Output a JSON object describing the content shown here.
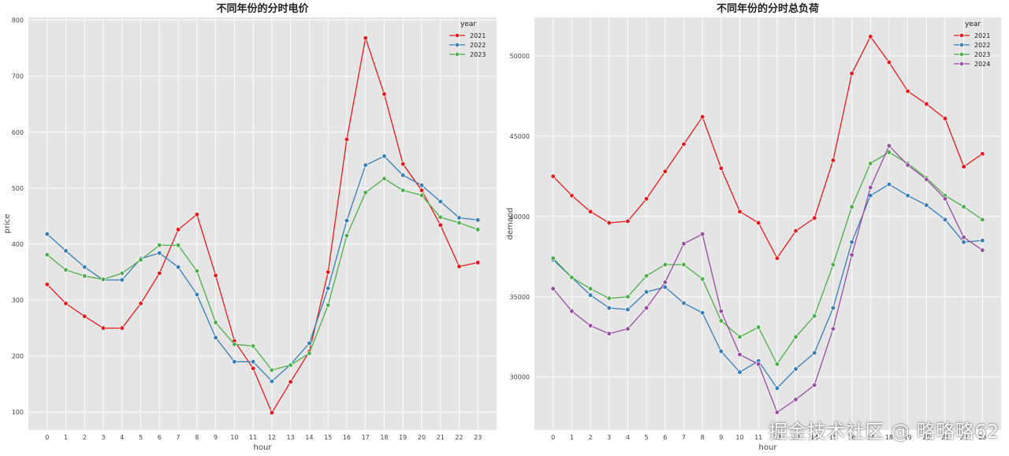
{
  "watermark": "掘金技术社区 @ 略略略62",
  "chart_data": [
    {
      "type": "line",
      "title": "不同年份的分时电价",
      "xlabel": "hour",
      "ylabel": "price",
      "x": [
        0,
        1,
        2,
        3,
        4,
        5,
        6,
        7,
        8,
        9,
        10,
        11,
        12,
        13,
        14,
        15,
        16,
        17,
        18,
        19,
        20,
        21,
        22,
        23
      ],
      "xticks": [
        "0",
        "1",
        "2",
        "3",
        "4",
        "5",
        "6",
        "7",
        "8",
        "9",
        "10",
        "11",
        "12",
        "13",
        "14",
        "15",
        "16",
        "17",
        "18",
        "19",
        "20",
        "21",
        "22",
        "23"
      ],
      "xlim": [
        -1,
        24
      ],
      "ylim": [
        68,
        805
      ],
      "yticks": [
        100,
        200,
        300,
        400,
        500,
        600,
        700,
        800
      ],
      "grid": true,
      "legend_title": "year",
      "legend_position": "top-right",
      "series": [
        {
          "name": "2021",
          "color": "#e41a1c",
          "values": [
            328,
            294,
            271,
            250,
            250,
            294,
            348,
            426,
            453,
            344,
            227,
            178,
            99,
            154,
            208,
            350,
            587,
            768,
            668,
            543,
            496,
            434,
            360,
            367
          ]
        },
        {
          "name": "2022",
          "color": "#377eb8",
          "values": [
            418,
            388,
            359,
            336,
            336,
            374,
            384,
            359,
            310,
            233,
            190,
            190,
            155,
            185,
            223,
            321,
            442,
            541,
            557,
            523,
            505,
            476,
            447,
            443
          ]
        },
        {
          "name": "2023",
          "color": "#4daf4a",
          "values": [
            381,
            354,
            343,
            337,
            348,
            372,
            398,
            398,
            352,
            260,
            221,
            218,
            175,
            184,
            205,
            291,
            415,
            492,
            517,
            496,
            487,
            448,
            438,
            426
          ]
        }
      ]
    },
    {
      "type": "line",
      "title": "不同年份的分时总负荷",
      "xlabel": "hour",
      "ylabel": "demand",
      "x": [
        0,
        1,
        2,
        3,
        4,
        5,
        6,
        7,
        8,
        9,
        10,
        11,
        12,
        13,
        14,
        15,
        16,
        17,
        18,
        19,
        20,
        21,
        22,
        23
      ],
      "xticks": [
        "0",
        "1",
        "2",
        "3",
        "4",
        "5",
        "6",
        "7",
        "8",
        "9",
        "10",
        "11",
        "12",
        "13",
        "14",
        "15",
        "16",
        "17",
        "18",
        "19",
        "20",
        "21",
        "22",
        "23"
      ],
      "xlim": [
        -1,
        24
      ],
      "ylim": [
        26700,
        52400
      ],
      "yticks": [
        30000,
        35000,
        40000,
        45000,
        50000
      ],
      "grid": true,
      "legend_title": "year",
      "legend_position": "top-right",
      "series": [
        {
          "name": "2021",
          "color": "#e41a1c",
          "values": [
            42500,
            41300,
            40300,
            39600,
            39700,
            41100,
            42800,
            44500,
            46200,
            43000,
            40300,
            39600,
            37400,
            39100,
            39900,
            43500,
            48900,
            51200,
            49600,
            47800,
            47000,
            46100,
            43100,
            43900
          ]
        },
        {
          "name": "2022",
          "color": "#377eb8",
          "values": [
            37300,
            36200,
            35100,
            34300,
            34200,
            35300,
            35600,
            34600,
            34000,
            31600,
            30300,
            31000,
            29300,
            30500,
            31500,
            34300,
            38400,
            41300,
            42000,
            41300,
            40700,
            39800,
            38400,
            38500
          ]
        },
        {
          "name": "2023",
          "color": "#4daf4a",
          "values": [
            37400,
            36200,
            35500,
            34900,
            35000,
            36300,
            37000,
            37000,
            36100,
            33500,
            32500,
            33100,
            30800,
            32500,
            33800,
            37000,
            40600,
            43300,
            44000,
            43300,
            42400,
            41300,
            40600,
            39800
          ]
        },
        {
          "name": "2024",
          "color": "#984ea3",
          "values": [
            35500,
            34100,
            33200,
            32700,
            33000,
            34300,
            35900,
            38300,
            38900,
            34100,
            31400,
            30800,
            27800,
            28600,
            29500,
            33000,
            37600,
            41800,
            44400,
            43200,
            42300,
            41100,
            38700,
            37900
          ]
        }
      ]
    }
  ]
}
